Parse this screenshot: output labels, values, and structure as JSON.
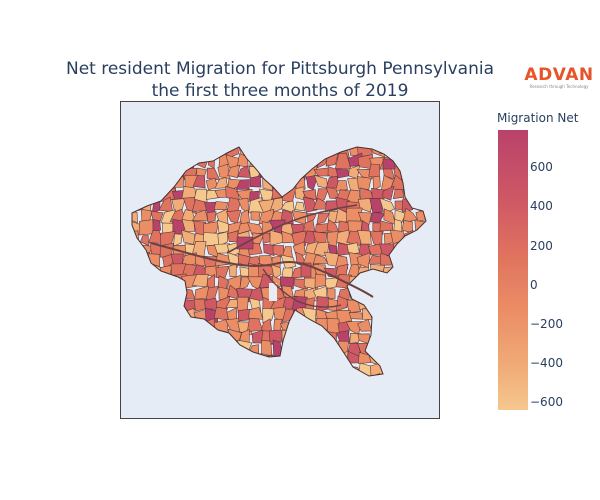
{
  "title": {
    "line1": "Net resident Migration for Pittsburgh Pennsylvania",
    "line2": "the first three months of 2019"
  },
  "logo": {
    "word": "ADVAN",
    "tagline": "Research through Technology",
    "color": "#e8542a"
  },
  "map": {
    "background": "#e5ecf6",
    "boundary_color": "#5a3a3a",
    "description": "choropleth of Pittsburgh census block groups"
  },
  "colorbar": {
    "title": "Migration Net",
    "ticks": [
      {
        "label": "600",
        "value": 600
      },
      {
        "label": "400",
        "value": 400
      },
      {
        "label": "200",
        "value": 200
      },
      {
        "label": "0",
        "value": 0
      },
      {
        "label": "−200",
        "value": -200
      },
      {
        "label": "−400",
        "value": -400
      },
      {
        "label": "−600",
        "value": -600
      }
    ],
    "range": [
      -640,
      790
    ],
    "colors": [
      "#f5c88e",
      "#f1ac78",
      "#eb8e66",
      "#e0735f",
      "#cf5865",
      "#b9426b"
    ]
  }
}
